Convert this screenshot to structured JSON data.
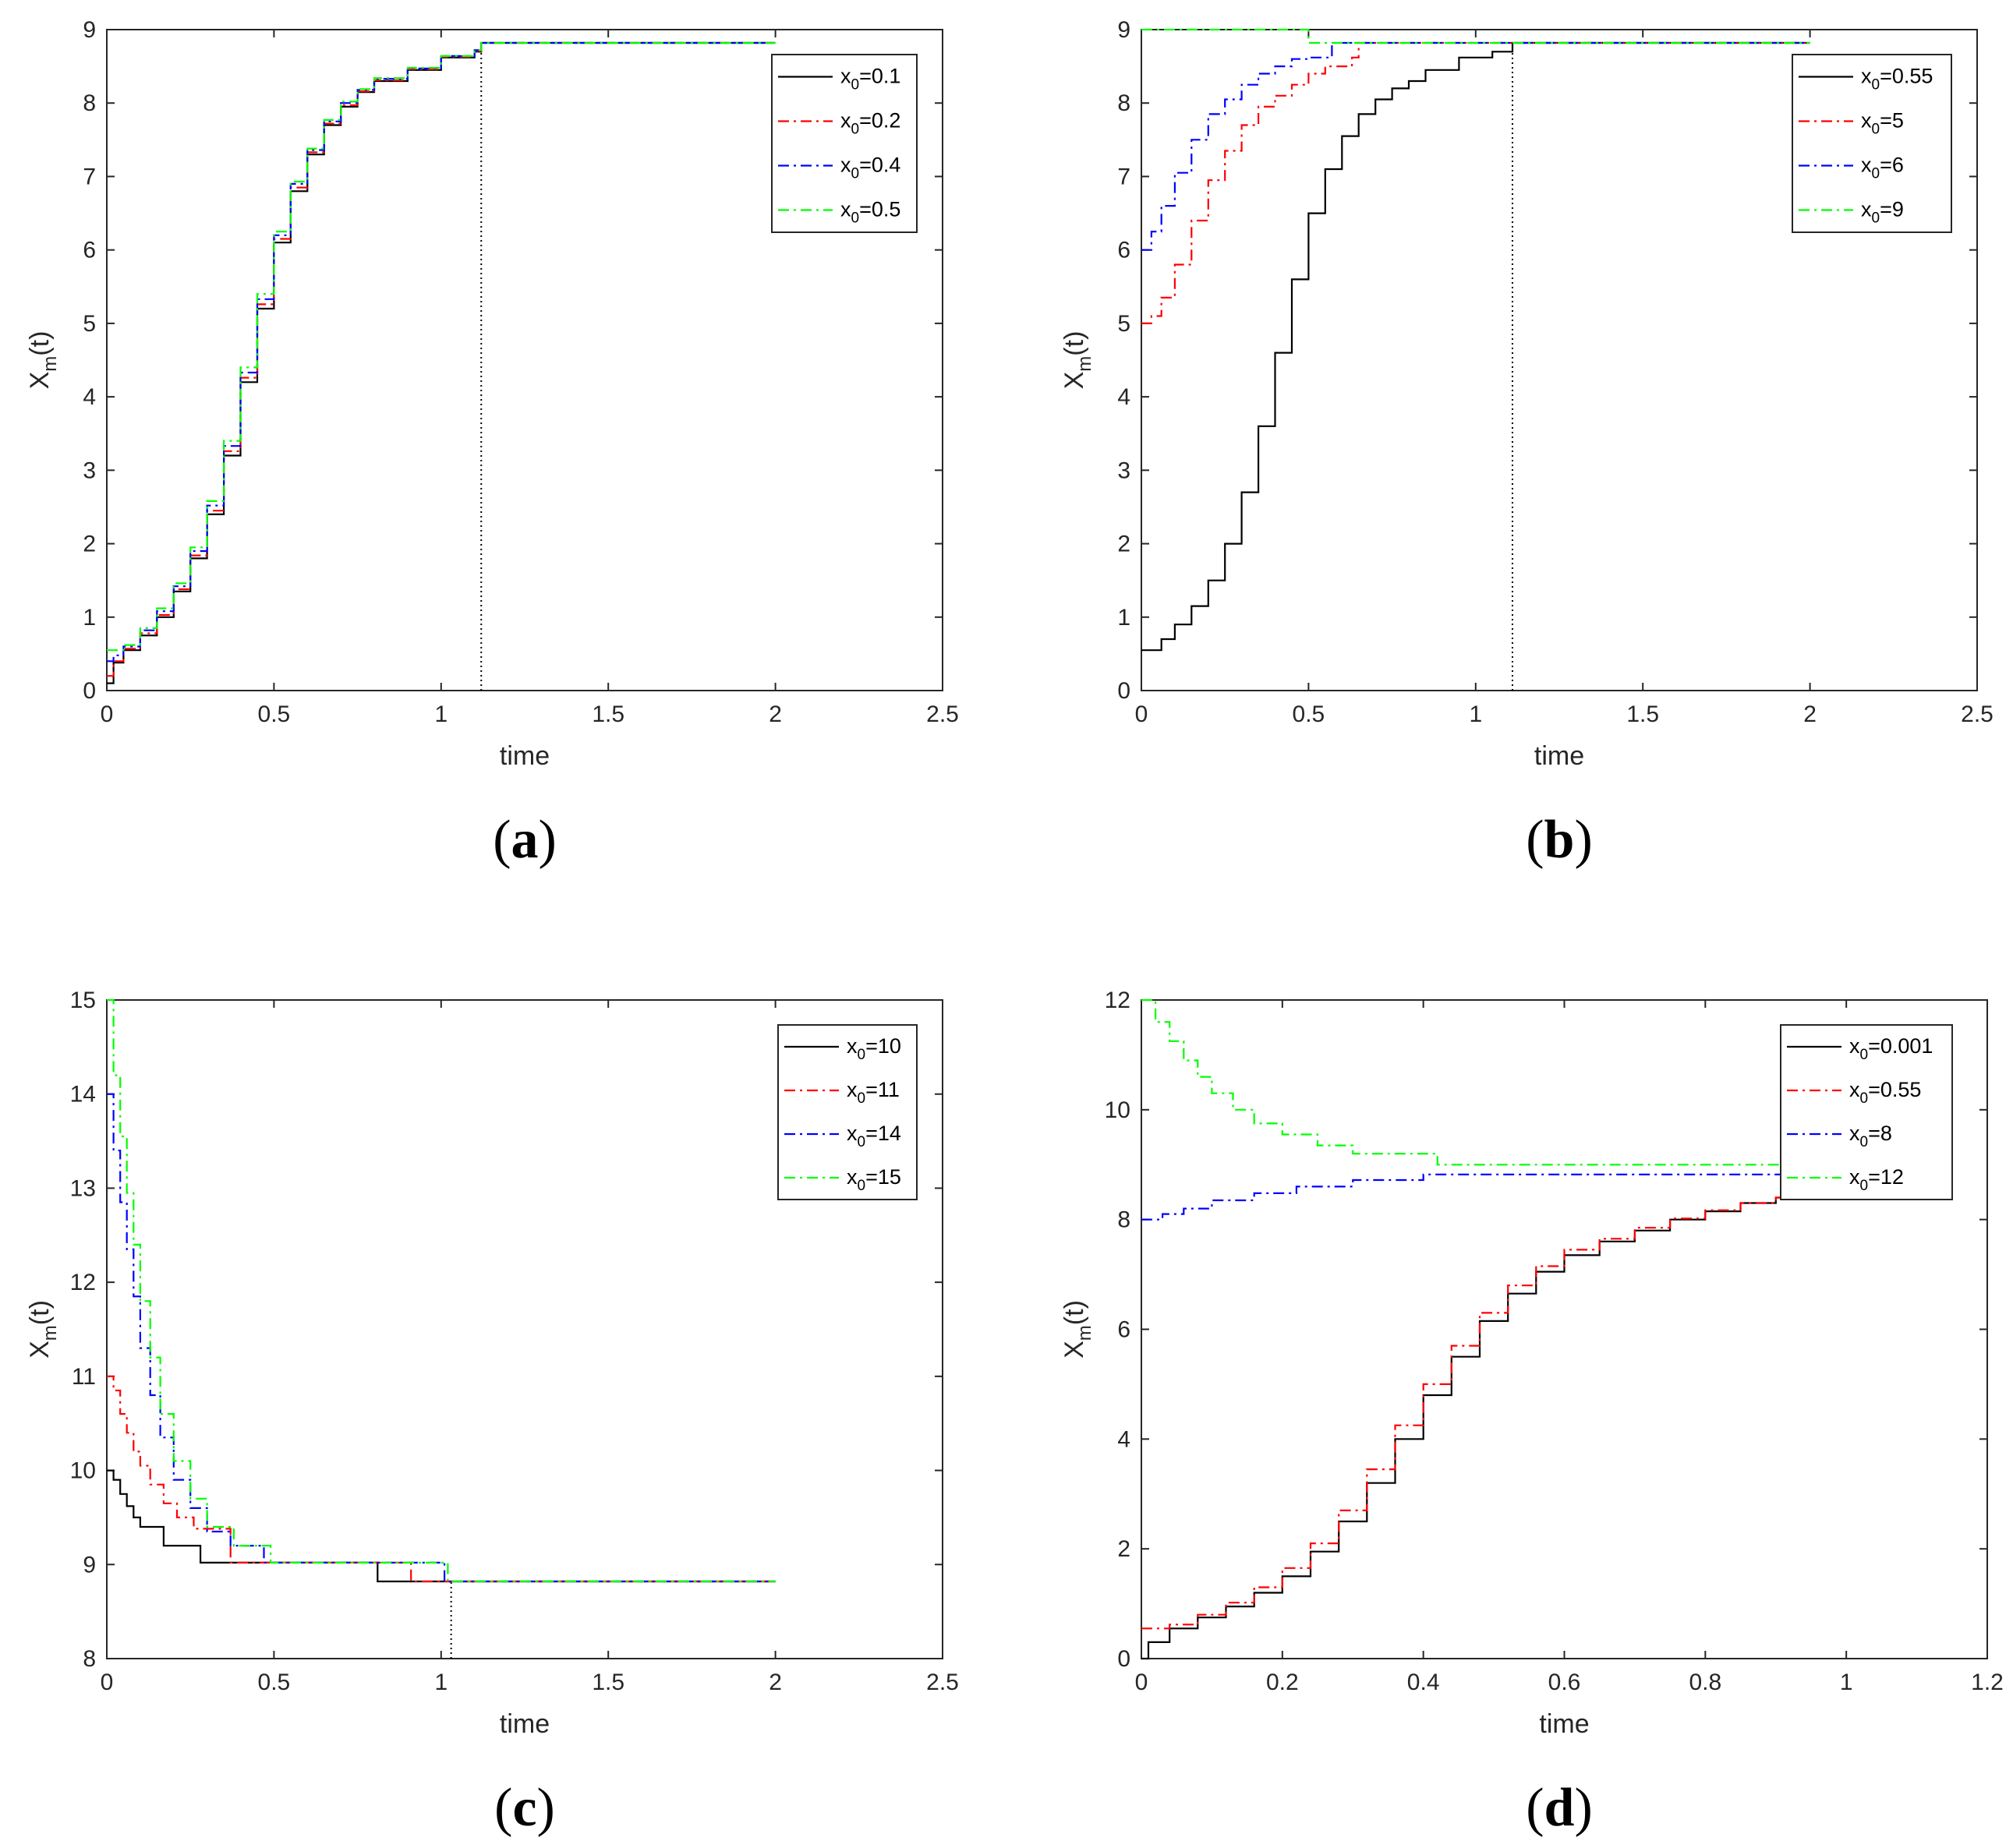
{
  "colors": {
    "black": "#000000",
    "red": "#ff0000",
    "blue": "#0000ff",
    "green": "#00ff00"
  },
  "chart_data": [
    {
      "panel": "a",
      "type": "line",
      "caption": "(a)",
      "xlabel": "time",
      "ylabel": "X_m(t)",
      "xlim": [
        0,
        2.5
      ],
      "ylim": [
        0,
        9
      ],
      "xticks": [
        0,
        0.5,
        1,
        1.5,
        2,
        2.5
      ],
      "yticks": [
        0,
        1,
        2,
        3,
        4,
        5,
        6,
        7,
        8,
        9
      ],
      "xtick_labels": [
        "0",
        "0.5",
        "1",
        "1.5",
        "2",
        "2.5"
      ],
      "ytick_labels": [
        "0",
        "1",
        "2",
        "3",
        "4",
        "5",
        "6",
        "7",
        "8",
        "9"
      ],
      "legend_position": "top-right",
      "series": [
        {
          "name": "x_0=0.1",
          "label_main": "x",
          "label_sub": "0",
          "label_rest": "=0.1",
          "color": "black",
          "style": "solid",
          "x": [
            0,
            0.02,
            0.05,
            0.1,
            0.15,
            0.2,
            0.25,
            0.3,
            0.35,
            0.4,
            0.45,
            0.5,
            0.55,
            0.6,
            0.65,
            0.7,
            0.75,
            0.8,
            0.9,
            1.0,
            1.1,
            1.12,
            2.0
          ],
          "y": [
            0.1,
            0.38,
            0.55,
            0.75,
            1.0,
            1.35,
            1.8,
            2.4,
            3.2,
            4.2,
            5.2,
            6.1,
            6.8,
            7.3,
            7.7,
            7.95,
            8.15,
            8.3,
            8.45,
            8.62,
            8.7,
            8.82,
            8.82
          ]
        },
        {
          "name": "x_0=0.2",
          "label_main": "x",
          "label_sub": "0",
          "label_rest": "=0.2",
          "color": "red",
          "style": "dashdot",
          "x": [
            0,
            0.02,
            0.05,
            0.1,
            0.15,
            0.2,
            0.25,
            0.3,
            0.35,
            0.4,
            0.45,
            0.5,
            0.55,
            0.6,
            0.65,
            0.7,
            0.75,
            0.8,
            0.9,
            1.0,
            1.1,
            1.12,
            2.0
          ],
          "y": [
            0.2,
            0.4,
            0.57,
            0.78,
            1.03,
            1.38,
            1.84,
            2.45,
            3.26,
            4.26,
            5.26,
            6.15,
            6.85,
            7.33,
            7.72,
            7.97,
            8.16,
            8.31,
            8.46,
            8.63,
            8.71,
            8.82,
            8.82
          ]
        },
        {
          "name": "x_0=0.4",
          "label_main": "x",
          "label_sub": "0",
          "label_rest": "=0.4",
          "color": "blue",
          "style": "dashdot",
          "x": [
            0,
            0.02,
            0.05,
            0.1,
            0.15,
            0.2,
            0.25,
            0.3,
            0.35,
            0.4,
            0.45,
            0.5,
            0.55,
            0.6,
            0.65,
            0.7,
            0.75,
            0.8,
            0.9,
            1.0,
            1.1,
            1.12,
            2.0
          ],
          "y": [
            0.4,
            0.48,
            0.6,
            0.82,
            1.08,
            1.42,
            1.9,
            2.52,
            3.33,
            4.33,
            5.33,
            6.2,
            6.9,
            7.36,
            7.75,
            8.0,
            8.18,
            8.33,
            8.47,
            8.64,
            8.72,
            8.82,
            8.82
          ]
        },
        {
          "name": "x_0=0.5",
          "label_main": "x",
          "label_sub": "0",
          "label_rest": "=0.5",
          "color": "green",
          "style": "dashdot",
          "x": [
            0,
            0.02,
            0.05,
            0.1,
            0.15,
            0.2,
            0.25,
            0.3,
            0.35,
            0.4,
            0.45,
            0.5,
            0.55,
            0.6,
            0.65,
            0.7,
            0.75,
            0.8,
            0.9,
            1.0,
            1.1,
            1.12,
            2.0
          ],
          "y": [
            0.55,
            0.55,
            0.62,
            0.85,
            1.12,
            1.46,
            1.95,
            2.58,
            3.4,
            4.4,
            5.4,
            6.25,
            6.93,
            7.38,
            7.77,
            8.02,
            8.19,
            8.34,
            8.48,
            8.64,
            8.72,
            8.82,
            8.82
          ]
        }
      ],
      "marker_line": {
        "x": 1.12,
        "y_from": 0,
        "y_to": 8.82
      }
    },
    {
      "panel": "b",
      "type": "line",
      "caption": "(b)",
      "xlabel": "time",
      "ylabel": "X_m(t)",
      "xlim": [
        0,
        2.5
      ],
      "ylim": [
        0,
        9
      ],
      "xticks": [
        0,
        0.5,
        1,
        1.5,
        2,
        2.5
      ],
      "yticks": [
        0,
        1,
        2,
        3,
        4,
        5,
        6,
        7,
        8,
        9
      ],
      "xtick_labels": [
        "0",
        "0.5",
        "1",
        "1.5",
        "2",
        "2.5"
      ],
      "ytick_labels": [
        "0",
        "1",
        "2",
        "3",
        "4",
        "5",
        "6",
        "7",
        "8",
        "9"
      ],
      "legend_position": "top-right",
      "series": [
        {
          "name": "x_0=0.55",
          "label_main": "x",
          "label_sub": "0",
          "label_rest": "=0.55",
          "color": "black",
          "style": "solid",
          "x": [
            0,
            0.06,
            0.1,
            0.15,
            0.2,
            0.25,
            0.3,
            0.35,
            0.4,
            0.45,
            0.5,
            0.55,
            0.6,
            0.65,
            0.7,
            0.75,
            0.8,
            0.85,
            0.95,
            1.05,
            1.11,
            2.0
          ],
          "y": [
            0.55,
            0.7,
            0.9,
            1.15,
            1.5,
            2.0,
            2.7,
            3.6,
            4.6,
            5.6,
            6.5,
            7.1,
            7.55,
            7.85,
            8.05,
            8.2,
            8.3,
            8.45,
            8.62,
            8.7,
            8.82,
            8.82
          ]
        },
        {
          "name": "x_0=5",
          "label_main": "x",
          "label_sub": "0",
          "label_rest": "=5",
          "color": "red",
          "style": "dashdot",
          "x": [
            0,
            0.03,
            0.06,
            0.1,
            0.15,
            0.2,
            0.25,
            0.3,
            0.35,
            0.4,
            0.45,
            0.5,
            0.55,
            0.63,
            0.65,
            2.0
          ],
          "y": [
            5.0,
            5.1,
            5.35,
            5.8,
            6.4,
            6.95,
            7.35,
            7.7,
            7.95,
            8.1,
            8.25,
            8.4,
            8.5,
            8.62,
            8.82,
            8.82
          ]
        },
        {
          "name": "x_0=6",
          "label_main": "x",
          "label_sub": "0",
          "label_rest": "=6",
          "color": "blue",
          "style": "dashdot",
          "x": [
            0,
            0.03,
            0.06,
            0.1,
            0.15,
            0.2,
            0.25,
            0.3,
            0.35,
            0.4,
            0.45,
            0.5,
            0.55,
            0.57,
            2.0
          ],
          "y": [
            6.0,
            6.25,
            6.6,
            7.05,
            7.5,
            7.85,
            8.05,
            8.25,
            8.4,
            8.5,
            8.6,
            8.62,
            8.62,
            8.82,
            8.82
          ]
        },
        {
          "name": "x_0=9",
          "label_main": "x",
          "label_sub": "0",
          "label_rest": "=9",
          "color": "green",
          "style": "dashdot",
          "x": [
            0,
            0.48,
            0.5,
            2.0
          ],
          "y": [
            9.0,
            9.0,
            8.82,
            8.82
          ]
        }
      ],
      "marker_line": {
        "x": 1.11,
        "y_from": 0,
        "y_to": 8.82
      }
    },
    {
      "panel": "c",
      "type": "line",
      "caption": "(c)",
      "xlabel": "time",
      "ylabel": "X_m(t)",
      "xlim": [
        0,
        2.5
      ],
      "ylim": [
        8,
        15
      ],
      "xticks": [
        0,
        0.5,
        1,
        1.5,
        2,
        2.5
      ],
      "yticks": [
        8,
        9,
        10,
        11,
        12,
        13,
        14,
        15
      ],
      "xtick_labels": [
        "0",
        "0.5",
        "1",
        "1.5",
        "2",
        "2.5"
      ],
      "ytick_labels": [
        "8",
        "9",
        "10",
        "11",
        "12",
        "13",
        "14",
        "15"
      ],
      "legend_position": "top-right",
      "series": [
        {
          "name": "x_0=10",
          "label_main": "x",
          "label_sub": "0",
          "label_rest": "=10",
          "color": "black",
          "style": "solid",
          "x": [
            0,
            0.02,
            0.04,
            0.06,
            0.08,
            0.1,
            0.17,
            0.28,
            0.8,
            0.81,
            1.02,
            1.03,
            2.0
          ],
          "y": [
            10.0,
            9.9,
            9.75,
            9.62,
            9.5,
            9.4,
            9.2,
            9.02,
            9.02,
            8.82,
            8.82,
            8.82,
            8.82
          ]
        },
        {
          "name": "x_0=11",
          "label_main": "x",
          "label_sub": "0",
          "label_rest": "=11",
          "color": "red",
          "style": "dashdot",
          "x": [
            0,
            0.02,
            0.04,
            0.06,
            0.08,
            0.1,
            0.13,
            0.17,
            0.21,
            0.26,
            0.37,
            0.9,
            0.91,
            2.0
          ],
          "y": [
            11.0,
            10.85,
            10.6,
            10.4,
            10.2,
            10.05,
            9.85,
            9.65,
            9.5,
            9.38,
            9.02,
            9.02,
            8.82,
            8.82
          ]
        },
        {
          "name": "x_0=14",
          "label_main": "x",
          "label_sub": "0",
          "label_rest": "=14",
          "color": "blue",
          "style": "dashdot",
          "x": [
            0,
            0.02,
            0.04,
            0.06,
            0.08,
            0.1,
            0.13,
            0.16,
            0.2,
            0.25,
            0.3,
            0.37,
            0.47,
            0.95,
            1.0,
            1.01,
            2.0
          ],
          "y": [
            14.0,
            13.4,
            12.85,
            12.35,
            11.85,
            11.3,
            10.8,
            10.35,
            9.9,
            9.6,
            9.35,
            9.2,
            9.02,
            9.02,
            9.02,
            8.82,
            8.82
          ]
        },
        {
          "name": "x_0=15",
          "label_main": "x",
          "label_sub": "0",
          "label_rest": "=15",
          "color": "green",
          "style": "dashdot",
          "x": [
            0,
            0.02,
            0.04,
            0.06,
            0.08,
            0.1,
            0.13,
            0.16,
            0.2,
            0.25,
            0.3,
            0.38,
            0.49,
            1.0,
            1.02,
            2.0
          ],
          "y": [
            15.0,
            14.2,
            13.55,
            12.95,
            12.4,
            11.8,
            11.2,
            10.6,
            10.1,
            9.7,
            9.4,
            9.2,
            9.02,
            9.02,
            8.82,
            8.82
          ]
        }
      ],
      "marker_line": {
        "x": 1.03,
        "y_from": 8,
        "y_to": 8.82
      }
    },
    {
      "panel": "d",
      "type": "line",
      "caption": "(d)",
      "xlabel": "time",
      "ylabel": "X_m(t)",
      "xlim": [
        0,
        1.2
      ],
      "ylim": [
        0,
        12
      ],
      "xticks": [
        0,
        0.2,
        0.4,
        0.6,
        0.8,
        1,
        1.2
      ],
      "yticks": [
        0,
        2,
        4,
        6,
        8,
        10,
        12
      ],
      "xtick_labels": [
        "0",
        "0.2",
        "0.4",
        "0.6",
        "0.8",
        "1",
        "1.2"
      ],
      "ytick_labels": [
        "0",
        "2",
        "4",
        "6",
        "8",
        "10",
        "12"
      ],
      "legend_position": "top-right",
      "series": [
        {
          "name": "x_0=0.001",
          "label_main": "x",
          "label_sub": "0",
          "label_rest": "=0.001",
          "color": "black",
          "style": "solid",
          "x": [
            0,
            0.01,
            0.04,
            0.08,
            0.12,
            0.16,
            0.2,
            0.24,
            0.28,
            0.32,
            0.36,
            0.4,
            0.44,
            0.48,
            0.52,
            0.56,
            0.6,
            0.65,
            0.7,
            0.75,
            0.8,
            0.85,
            0.9,
            0.95
          ],
          "y": [
            0.0,
            0.3,
            0.55,
            0.75,
            0.95,
            1.2,
            1.5,
            1.95,
            2.5,
            3.2,
            4.0,
            4.8,
            5.5,
            6.15,
            6.65,
            7.05,
            7.35,
            7.6,
            7.8,
            8.0,
            8.15,
            8.3,
            8.4,
            8.45
          ]
        },
        {
          "name": "x_0=0.55",
          "label_main": "x",
          "label_sub": "0",
          "label_rest": "=0.55",
          "color": "red",
          "style": "dashdot",
          "x": [
            0,
            0.04,
            0.08,
            0.12,
            0.16,
            0.2,
            0.24,
            0.28,
            0.32,
            0.36,
            0.4,
            0.44,
            0.48,
            0.52,
            0.56,
            0.6,
            0.65,
            0.7,
            0.75,
            0.8,
            0.85,
            0.9,
            0.95
          ],
          "y": [
            0.55,
            0.62,
            0.8,
            1.02,
            1.3,
            1.65,
            2.1,
            2.7,
            3.45,
            4.25,
            5.0,
            5.7,
            6.3,
            6.8,
            7.15,
            7.45,
            7.65,
            7.85,
            8.02,
            8.17,
            8.3,
            8.4,
            8.45
          ]
        },
        {
          "name": "x_0=8",
          "label_main": "x",
          "label_sub": "0",
          "label_rest": "=8",
          "color": "blue",
          "style": "dashdot",
          "x": [
            0,
            0.03,
            0.06,
            0.1,
            0.16,
            0.22,
            0.3,
            0.4,
            0.6,
            0.8,
            0.95
          ],
          "y": [
            8.0,
            8.1,
            8.2,
            8.35,
            8.48,
            8.6,
            8.72,
            8.82,
            8.82,
            8.82,
            8.82
          ]
        },
        {
          "name": "x_0=12",
          "label_main": "x",
          "label_sub": "0",
          "label_rest": "=12",
          "color": "green",
          "style": "dashdot",
          "x": [
            0,
            0.02,
            0.04,
            0.06,
            0.08,
            0.1,
            0.13,
            0.16,
            0.2,
            0.25,
            0.3,
            0.42,
            0.6,
            0.8,
            0.95
          ],
          "y": [
            12.0,
            11.6,
            11.25,
            10.9,
            10.6,
            10.3,
            10.0,
            9.75,
            9.55,
            9.35,
            9.2,
            9.0,
            9.0,
            9.0,
            9.0
          ]
        }
      ]
    }
  ]
}
